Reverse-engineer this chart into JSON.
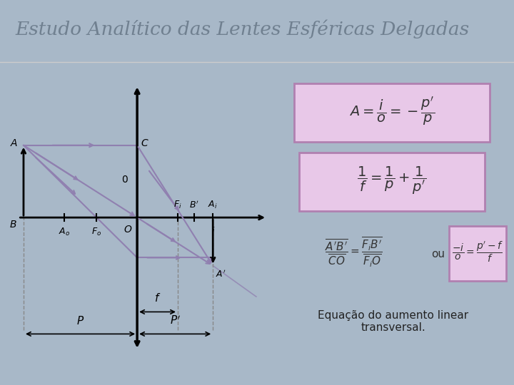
{
  "title": "Estudo Analítico das Lentes Esféricas Delgadas",
  "subtitle": "Equação do aumento linear\ntransversal.",
  "bg_color": "#a8b8c8",
  "header_bg": "#ffffff",
  "header_text_color": "#708090",
  "diagram_bg": "#ffffff",
  "formula_box_color": "#e8c8e8",
  "formula_border_color": "#b080b0",
  "ray_color": "#9080b0",
  "axis_color": "#000000",
  "dashed_color": "#888888",
  "circle_color": "#708090",
  "bottom_color": "#8899aa"
}
